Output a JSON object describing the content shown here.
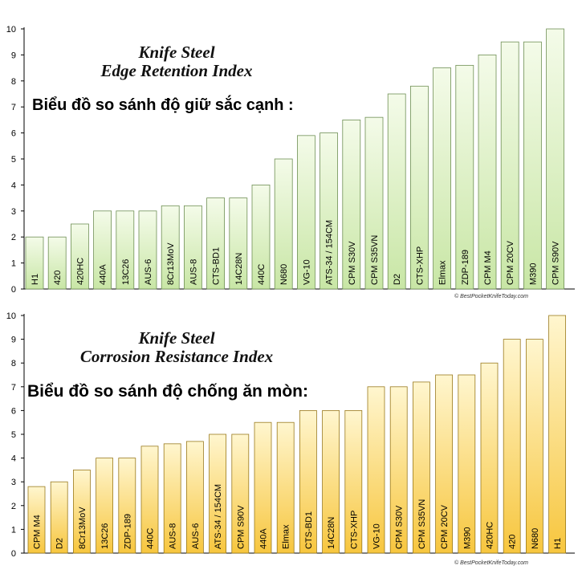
{
  "chart_data": [
    {
      "type": "bar",
      "title": "Knife Steel",
      "subtitle": "Edge Retention Index",
      "caption": "Biểu đồ so sánh độ giữ sắc cạnh :",
      "credit": "© BestPocketKnifeToday.com",
      "ylim": [
        0,
        10
      ],
      "yticks": [
        "0",
        "1",
        "2",
        "3",
        "4",
        "5",
        "6",
        "7",
        "8",
        "9",
        "10"
      ],
      "grid": false,
      "colors": {
        "bar_top": "#f4fbe9",
        "bar_bottom": "#c8e6a5",
        "bar_edge": "#6f8f55"
      },
      "categories": [
        "H1",
        "420",
        "420HC",
        "440A",
        "13C26",
        "AUS-6",
        "8Cr13MoV",
        "AUS-8",
        "CTS-BD1",
        "14C28N",
        "440C",
        "N680",
        "VG-10",
        "ATS-34 / 154CM",
        "CPM S30V",
        "CPM S35VN",
        "D2",
        "CTS-XHP",
        "Elmax",
        "ZDP-189",
        "CPM M4",
        "CPM 20CV",
        "M390",
        "CPM S90V"
      ],
      "values": [
        2,
        2,
        2.5,
        3,
        3,
        3,
        3.2,
        3.2,
        3.5,
        3.5,
        4,
        5,
        5.9,
        6,
        6.5,
        6.6,
        7.5,
        7.8,
        8.5,
        8.6,
        9,
        9.5,
        9.5,
        10
      ]
    },
    {
      "type": "bar",
      "title": "Knife Steel",
      "subtitle": "Corrosion Resistance Index",
      "caption": "Biểu đồ so sánh độ chống ăn mòn:",
      "credit": "© BestPocketKnifeToday.com",
      "ylim": [
        0,
        10
      ],
      "yticks": [
        "0",
        "1",
        "2",
        "3",
        "4",
        "5",
        "6",
        "7",
        "8",
        "9",
        "10"
      ],
      "grid": false,
      "colors": {
        "bar_top": "#fff6cf",
        "bar_bottom": "#f7c63e",
        "bar_edge": "#9a7a1e"
      },
      "categories": [
        "CPM M4",
        "D2",
        "8Cr13MoV",
        "13C26",
        "ZDP-189",
        "440C",
        "AUS-8",
        "AUS-6",
        "ATS-34 / 154CM",
        "CPM S90V",
        "440A",
        "Elmax",
        "CTS-BD1",
        "14C28N",
        "CTS-XHP",
        "VG-10",
        "CPM S30V",
        "CPM S35VN",
        "CPM 20CV",
        "M390",
        "420HC",
        "420",
        "N680",
        "H1"
      ],
      "values": [
        2.8,
        3,
        3.5,
        4,
        4,
        4.5,
        4.6,
        4.7,
        5,
        5,
        5.5,
        5.5,
        6,
        6,
        6,
        7,
        7,
        7.2,
        7.5,
        7.5,
        8,
        9,
        9,
        10
      ]
    }
  ]
}
